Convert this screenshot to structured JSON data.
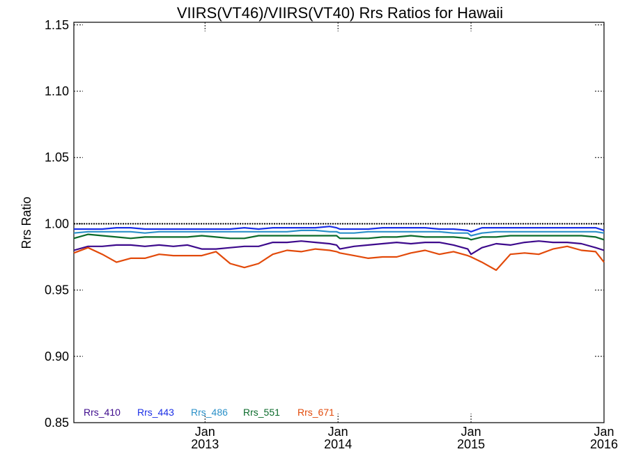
{
  "chart_data": {
    "type": "line",
    "title": "VIIRS(VT46)/VIIRS(VT40)  Rrs Ratios for Hawaii",
    "xlabel": "",
    "ylabel": "Rrs Ratio",
    "xlim": [
      "2012-01-07",
      "2016-01-01"
    ],
    "ylim": [
      0.85,
      1.152
    ],
    "yticks": [
      0.85,
      0.9,
      0.95,
      1.0,
      1.05,
      1.1,
      1.15
    ],
    "ytick_labels": [
      "0.85",
      "0.90",
      "0.95",
      "1.00",
      "1.05",
      "1.10",
      "1.15"
    ],
    "xticks": [
      {
        "date": "2013-01-01",
        "month": "Jan",
        "year": "2013"
      },
      {
        "date": "2014-01-01",
        "month": "Jan",
        "year": "2014"
      },
      {
        "date": "2015-01-01",
        "month": "Jan",
        "year": "2015"
      },
      {
        "date": "2016-01-01",
        "month": "Jan",
        "year": "2016"
      }
    ],
    "reference_line": 1.0,
    "grid": false,
    "legend_placement": "bottom-left",
    "x": [
      "2012-01-07",
      "2012-02-15",
      "2012-03-25",
      "2012-05-03",
      "2012-06-11",
      "2012-07-20",
      "2012-08-28",
      "2012-10-06",
      "2012-11-14",
      "2012-12-23",
      "2013-01-31",
      "2013-03-11",
      "2013-04-19",
      "2013-05-28",
      "2013-07-06",
      "2013-08-14",
      "2013-09-22",
      "2013-10-31",
      "2013-12-09",
      "2013-12-28",
      "2014-01-06",
      "2014-02-14",
      "2014-03-25",
      "2014-05-03",
      "2014-06-11",
      "2014-07-20",
      "2014-08-28",
      "2014-10-06",
      "2014-11-14",
      "2014-12-23",
      "2015-01-01",
      "2015-01-31",
      "2015-03-11",
      "2015-04-19",
      "2015-05-28",
      "2015-07-06",
      "2015-08-14",
      "2015-09-22",
      "2015-10-31",
      "2015-12-09",
      "2016-01-01"
    ],
    "series": [
      {
        "name": "Rrs_410",
        "color": "#3d0a8c",
        "values": [
          0.98,
          0.983,
          0.983,
          0.984,
          0.984,
          0.983,
          0.984,
          0.983,
          0.984,
          0.981,
          0.981,
          0.982,
          0.983,
          0.983,
          0.986,
          0.986,
          0.987,
          0.986,
          0.985,
          0.984,
          0.981,
          0.983,
          0.984,
          0.985,
          0.986,
          0.985,
          0.986,
          0.986,
          0.984,
          0.981,
          0.977,
          0.982,
          0.985,
          0.984,
          0.986,
          0.987,
          0.986,
          0.986,
          0.985,
          0.982,
          0.98
        ]
      },
      {
        "name": "Rrs_443",
        "color": "#1a2ee6",
        "values": [
          0.996,
          0.996,
          0.996,
          0.997,
          0.997,
          0.996,
          0.996,
          0.996,
          0.996,
          0.996,
          0.996,
          0.996,
          0.997,
          0.996,
          0.997,
          0.997,
          0.997,
          0.997,
          0.998,
          0.997,
          0.996,
          0.996,
          0.996,
          0.997,
          0.997,
          0.997,
          0.997,
          0.996,
          0.996,
          0.995,
          0.994,
          0.997,
          0.997,
          0.997,
          0.997,
          0.997,
          0.997,
          0.997,
          0.997,
          0.997,
          0.995
        ]
      },
      {
        "name": "Rrs_486",
        "color": "#2a90c8",
        "values": [
          0.993,
          0.994,
          0.994,
          0.994,
          0.994,
          0.993,
          0.994,
          0.994,
          0.994,
          0.994,
          0.994,
          0.994,
          0.994,
          0.994,
          0.994,
          0.994,
          0.995,
          0.995,
          0.994,
          0.994,
          0.993,
          0.993,
          0.994,
          0.994,
          0.994,
          0.994,
          0.994,
          0.994,
          0.993,
          0.993,
          0.991,
          0.993,
          0.994,
          0.994,
          0.994,
          0.994,
          0.994,
          0.994,
          0.994,
          0.994,
          0.993
        ]
      },
      {
        "name": "Rrs_551",
        "color": "#0a6a2a",
        "values": [
          0.989,
          0.992,
          0.991,
          0.99,
          0.989,
          0.99,
          0.99,
          0.99,
          0.99,
          0.991,
          0.99,
          0.989,
          0.989,
          0.991,
          0.991,
          0.991,
          0.991,
          0.991,
          0.991,
          0.991,
          0.989,
          0.989,
          0.989,
          0.99,
          0.99,
          0.991,
          0.99,
          0.99,
          0.99,
          0.989,
          0.988,
          0.99,
          0.99,
          0.991,
          0.991,
          0.991,
          0.991,
          0.991,
          0.991,
          0.99,
          0.988
        ]
      },
      {
        "name": "Rrs_671",
        "color": "#e24a0a",
        "values": [
          0.978,
          0.982,
          0.977,
          0.971,
          0.974,
          0.974,
          0.977,
          0.976,
          0.976,
          0.976,
          0.979,
          0.97,
          0.967,
          0.97,
          0.977,
          0.98,
          0.979,
          0.981,
          0.98,
          0.979,
          0.978,
          0.976,
          0.974,
          0.975,
          0.975,
          0.978,
          0.98,
          0.977,
          0.979,
          0.976,
          0.975,
          0.971,
          0.965,
          0.977,
          0.978,
          0.977,
          0.981,
          0.983,
          0.98,
          0.979,
          0.971
        ]
      }
    ]
  }
}
